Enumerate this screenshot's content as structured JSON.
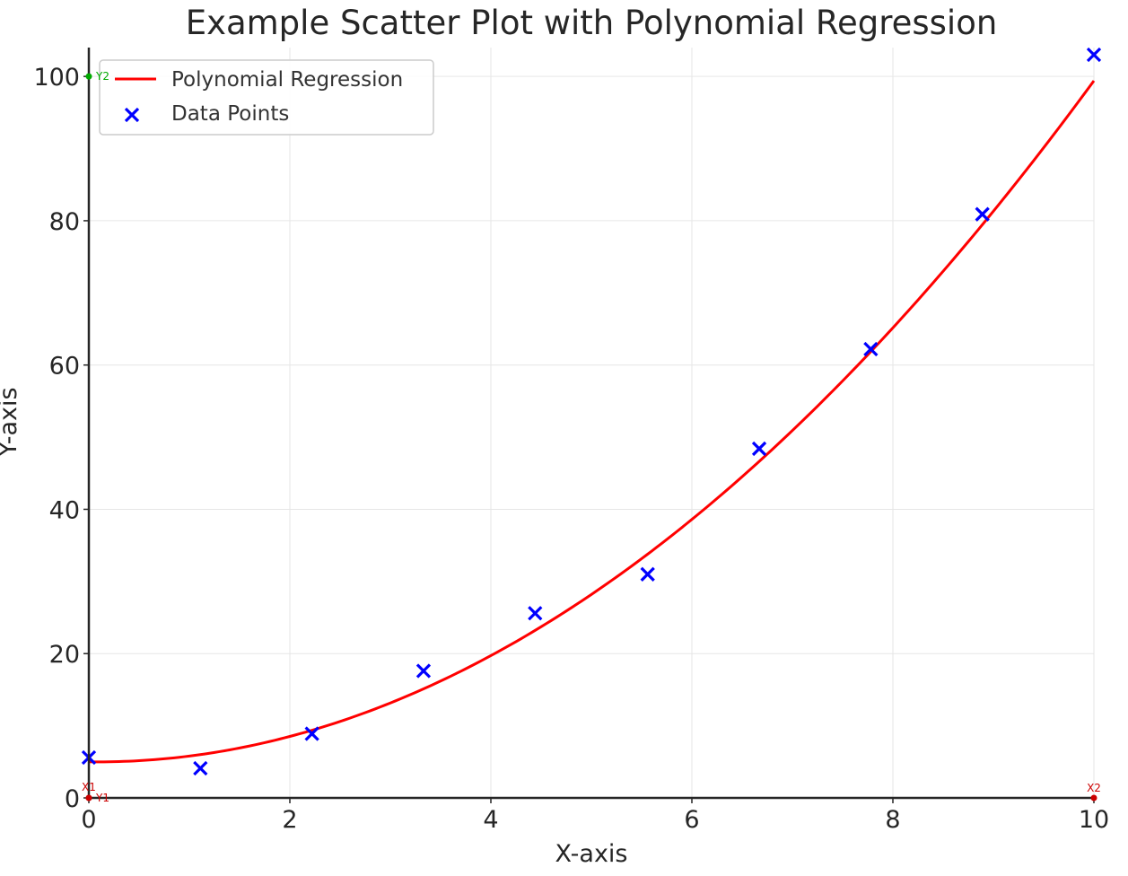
{
  "chart_data": {
    "type": "scatter",
    "title": "Example Scatter Plot with Polynomial Regression",
    "xlabel": "X-axis",
    "ylabel": "Y-axis",
    "xlim": [
      0,
      10
    ],
    "ylim": [
      0,
      104
    ],
    "x_ticks": [
      "0",
      "2",
      "4",
      "6",
      "8",
      "10"
    ],
    "y_ticks": [
      "0",
      "20",
      "40",
      "60",
      "80",
      "100"
    ],
    "grid": true,
    "legend": {
      "placement": "top-left",
      "entries": [
        "Polynomial Regression",
        "Data Points"
      ]
    },
    "series": [
      {
        "name": "Data Points",
        "type": "scatter",
        "marker": "x",
        "color": "#0000ff",
        "x": [
          0,
          1.11,
          2.22,
          3.33,
          4.44,
          5.56,
          6.67,
          7.78,
          8.89,
          10
        ],
        "y": [
          5.6,
          4.1,
          8.9,
          17.6,
          25.6,
          31.0,
          48.4,
          62.2,
          80.9,
          103.0
        ]
      },
      {
        "name": "Polynomial Regression",
        "type": "line",
        "color": "#ff0000",
        "coefficients": [
          0.96,
          -0.16,
          5.0
        ]
      }
    ],
    "reference_markers": [
      {
        "label": "X1",
        "color": "#cc0000"
      },
      {
        "label": "Y1",
        "color": "#cc0000"
      },
      {
        "label": "Y2",
        "color": "#00aa00"
      },
      {
        "label": "X2",
        "color": "#cc0000"
      }
    ]
  }
}
